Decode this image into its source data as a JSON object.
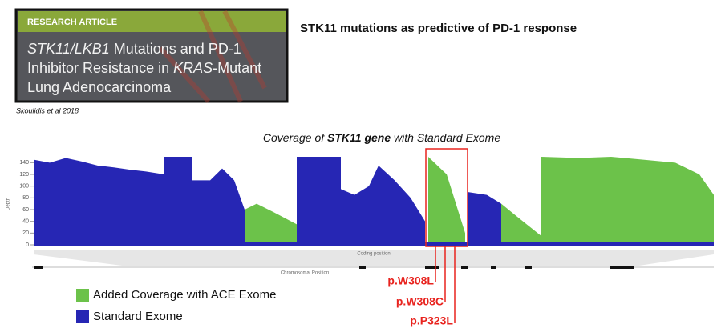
{
  "header": {
    "title": "STK11 mutations as predictive of PD-1 response"
  },
  "article": {
    "label": "RESEARCH ARTICLE",
    "title": [
      [
        "STK11/LKB1",
        " Mutations and PD-1"
      ],
      [
        "Inhibitor Resistance in ",
        "KRAS",
        "-Mutant"
      ],
      [
        "Lung Adenocarcinoma"
      ]
    ]
  },
  "citation": "Skoulidis et al 2018",
  "chart_data": {
    "type": "area",
    "title": [
      "Coverage of ",
      "STK11 gene",
      " with Standard Exome"
    ],
    "ylabel": "Depth",
    "xlabel": "Coding position",
    "x2label": "Chromosomal Position",
    "x": [
      0,
      20,
      40,
      60,
      80,
      100,
      120,
      140,
      163,
      163,
      198,
      198,
      220,
      235,
      250,
      263,
      278,
      300,
      328,
      328,
      383,
      383,
      400,
      418,
      430,
      450,
      470,
      488,
      492,
      515,
      538,
      541,
      565,
      583,
      610,
      633,
      633,
      680,
      720,
      760,
      800,
      830,
      848
    ],
    "xlim": [
      0,
      848
    ],
    "ylim": [
      0,
      150
    ],
    "yticks": [
      0,
      20,
      40,
      60,
      80,
      100,
      120,
      140
    ],
    "series": [
      {
        "name": "Added Coverage with ACE Exome",
        "color": "#6cc24a",
        "values": [
          null,
          null,
          null,
          null,
          null,
          null,
          null,
          null,
          null,
          null,
          null,
          null,
          null,
          null,
          null,
          60,
          70,
          55,
          35,
          null,
          null,
          null,
          null,
          null,
          null,
          null,
          null,
          null,
          150,
          120,
          20,
          null,
          null,
          70,
          40,
          15,
          150,
          148,
          150,
          145,
          140,
          120,
          85
        ]
      },
      {
        "name": "Standard Exome",
        "color": "#2626b4",
        "values": [
          145,
          140,
          148,
          142,
          135,
          132,
          128,
          125,
          120,
          150,
          150,
          110,
          110,
          130,
          110,
          60,
          null,
          null,
          null,
          150,
          150,
          95,
          85,
          100,
          135,
          110,
          80,
          40,
          null,
          null,
          null,
          90,
          85,
          70,
          null,
          null,
          null,
          null,
          null,
          null,
          null,
          null,
          null
        ]
      }
    ]
  },
  "mutations": [
    "p.W308L",
    "p.W308C",
    "p.P323L"
  ]
}
